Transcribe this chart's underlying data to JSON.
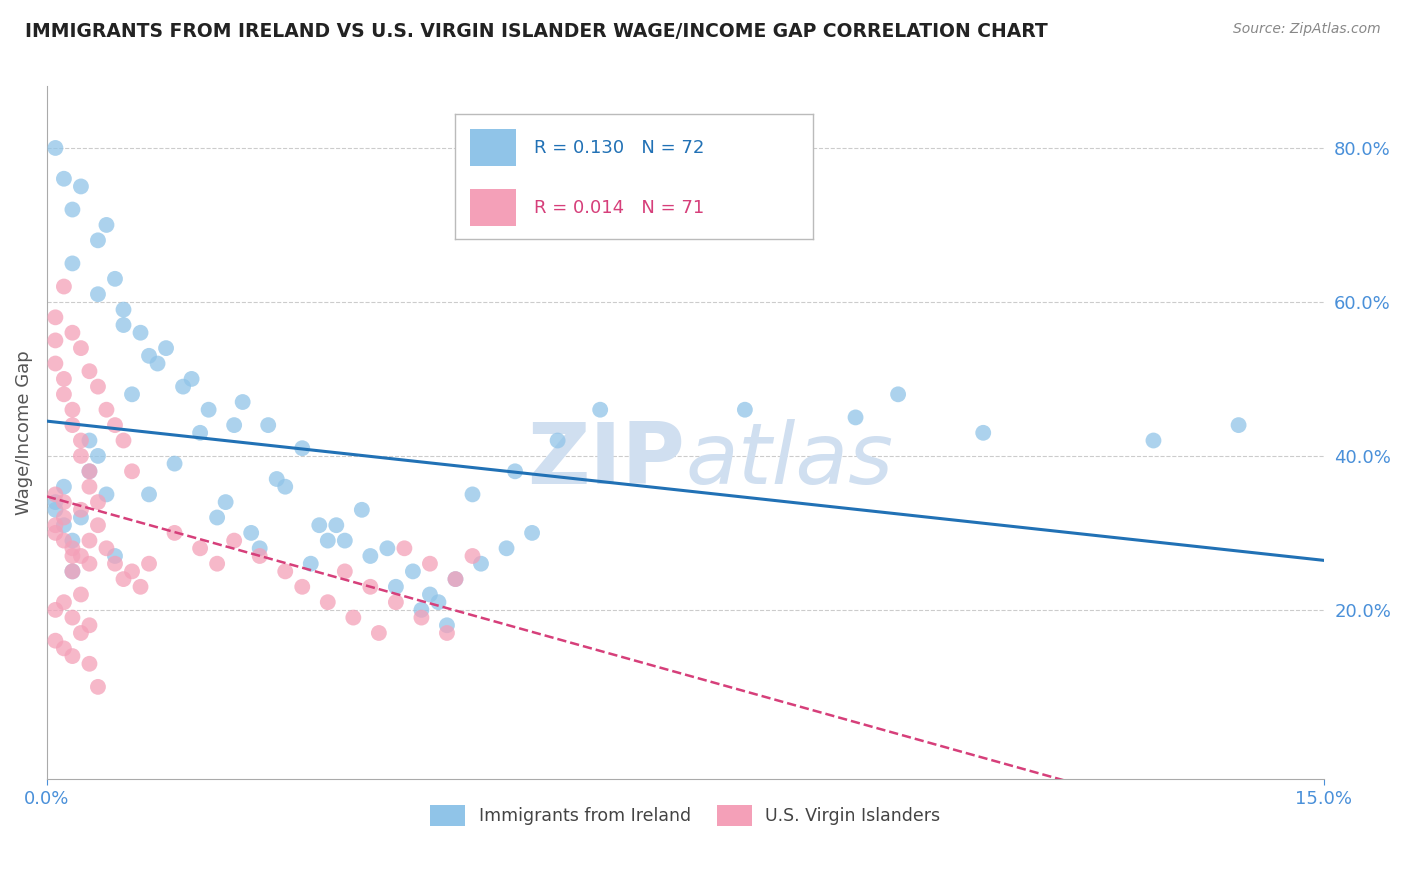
{
  "title": "IMMIGRANTS FROM IRELAND VS U.S. VIRGIN ISLANDER WAGE/INCOME GAP CORRELATION CHART",
  "source": "Source: ZipAtlas.com",
  "ylabel": "Wage/Income Gap",
  "xlim": [
    0.0,
    0.15
  ],
  "ylim": [
    -0.02,
    0.88
  ],
  "yticks": [
    0.2,
    0.4,
    0.6,
    0.8
  ],
  "ytick_labels": [
    "20.0%",
    "40.0%",
    "60.0%",
    "80.0%"
  ],
  "xticks": [
    0.0,
    0.15
  ],
  "xtick_labels": [
    "0.0%",
    "15.0%"
  ],
  "blue_R": 0.13,
  "blue_N": 72,
  "pink_R": 0.014,
  "pink_N": 71,
  "blue_color": "#90c4e8",
  "pink_color": "#f4a0b8",
  "blue_line_color": "#2171b5",
  "pink_line_color": "#d63f7a",
  "legend_label_blue": "Immigrants from Ireland",
  "legend_label_pink": "U.S. Virgin Islanders",
  "background_color": "#ffffff",
  "grid_color": "#cccccc",
  "title_color": "#222222",
  "axis_label_color": "#555555",
  "tick_label_color": "#4a90d9",
  "watermark_color": "#d0dff0",
  "blue_x": [
    0.004,
    0.007,
    0.003,
    0.005,
    0.002,
    0.006,
    0.001,
    0.008,
    0.003,
    0.005,
    0.01,
    0.012,
    0.015,
    0.018,
    0.02,
    0.022,
    0.025,
    0.028,
    0.03,
    0.033,
    0.003,
    0.004,
    0.006,
    0.008,
    0.009,
    0.011,
    0.013,
    0.016,
    0.019,
    0.021,
    0.024,
    0.027,
    0.031,
    0.034,
    0.037,
    0.04,
    0.043,
    0.046,
    0.002,
    0.007,
    0.014,
    0.017,
    0.023,
    0.026,
    0.032,
    0.035,
    0.038,
    0.041,
    0.044,
    0.047,
    0.05,
    0.055,
    0.06,
    0.065,
    0.045,
    0.048,
    0.051,
    0.054,
    0.057,
    0.001,
    0.003,
    0.006,
    0.009,
    0.012,
    0.082,
    0.095,
    0.1,
    0.11,
    0.13,
    0.14,
    0.001,
    0.002
  ],
  "blue_y": [
    0.32,
    0.35,
    0.29,
    0.38,
    0.31,
    0.4,
    0.33,
    0.27,
    0.25,
    0.42,
    0.48,
    0.35,
    0.39,
    0.43,
    0.32,
    0.44,
    0.28,
    0.36,
    0.41,
    0.29,
    0.72,
    0.75,
    0.68,
    0.63,
    0.59,
    0.56,
    0.52,
    0.49,
    0.46,
    0.34,
    0.3,
    0.37,
    0.26,
    0.31,
    0.33,
    0.28,
    0.25,
    0.21,
    0.76,
    0.7,
    0.54,
    0.5,
    0.47,
    0.44,
    0.31,
    0.29,
    0.27,
    0.23,
    0.2,
    0.18,
    0.35,
    0.38,
    0.42,
    0.46,
    0.22,
    0.24,
    0.26,
    0.28,
    0.3,
    0.8,
    0.65,
    0.61,
    0.57,
    0.53,
    0.46,
    0.45,
    0.48,
    0.43,
    0.42,
    0.44,
    0.34,
    0.36
  ],
  "pink_x": [
    0.001,
    0.002,
    0.003,
    0.004,
    0.005,
    0.001,
    0.002,
    0.003,
    0.001,
    0.002,
    0.003,
    0.004,
    0.005,
    0.006,
    0.007,
    0.008,
    0.009,
    0.01,
    0.011,
    0.012,
    0.001,
    0.002,
    0.003,
    0.004,
    0.005,
    0.006,
    0.007,
    0.008,
    0.009,
    0.01,
    0.001,
    0.002,
    0.003,
    0.004,
    0.005,
    0.001,
    0.002,
    0.003,
    0.004,
    0.005,
    0.015,
    0.018,
    0.02,
    0.022,
    0.025,
    0.028,
    0.03,
    0.033,
    0.036,
    0.039,
    0.042,
    0.045,
    0.048,
    0.05,
    0.035,
    0.038,
    0.041,
    0.044,
    0.047,
    0.001,
    0.001,
    0.002,
    0.002,
    0.003,
    0.003,
    0.004,
    0.004,
    0.005,
    0.005,
    0.006,
    0.006
  ],
  "pink_y": [
    0.3,
    0.32,
    0.28,
    0.33,
    0.26,
    0.31,
    0.29,
    0.27,
    0.35,
    0.34,
    0.25,
    0.27,
    0.29,
    0.31,
    0.28,
    0.26,
    0.24,
    0.25,
    0.23,
    0.26,
    0.58,
    0.62,
    0.56,
    0.54,
    0.51,
    0.49,
    0.46,
    0.44,
    0.42,
    0.38,
    0.2,
    0.21,
    0.19,
    0.22,
    0.18,
    0.16,
    0.15,
    0.14,
    0.17,
    0.13,
    0.3,
    0.28,
    0.26,
    0.29,
    0.27,
    0.25,
    0.23,
    0.21,
    0.19,
    0.17,
    0.28,
    0.26,
    0.24,
    0.27,
    0.25,
    0.23,
    0.21,
    0.19,
    0.17,
    0.55,
    0.52,
    0.5,
    0.48,
    0.46,
    0.44,
    0.42,
    0.4,
    0.38,
    0.36,
    0.34,
    0.1
  ]
}
